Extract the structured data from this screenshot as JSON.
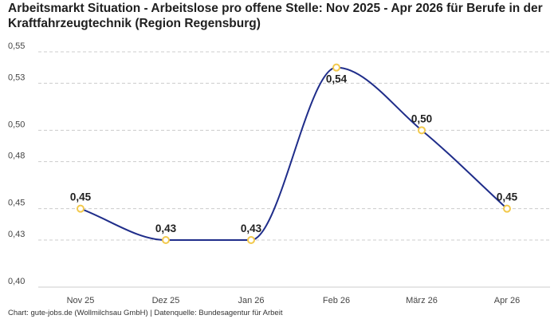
{
  "chart_data": {
    "type": "line",
    "title": "Arbeitsmarkt Situation - Arbeitslose pro offene Stelle: Nov 2025 - Apr 2026 für Berufe in der Kraftfahrzeugtechnik (Region Regensburg)",
    "xlabel": "",
    "ylabel": "",
    "categories": [
      "Nov 25",
      "Dez 25",
      "Jan 26",
      "Feb 26",
      "März 26",
      "Apr 26"
    ],
    "series": [
      {
        "values": [
          0.45,
          0.43,
          0.43,
          0.54,
          0.5,
          0.45
        ],
        "labels": [
          "0,45",
          "0,43",
          "0,43",
          "0,54",
          "0,50",
          "0,45"
        ]
      }
    ],
    "ylim": [
      0.4,
      0.55
    ],
    "yticks": [
      0.4,
      0.43,
      0.45,
      0.48,
      0.5,
      0.53,
      0.55
    ],
    "ytick_labels": [
      "0,40",
      "0,43",
      "0,45",
      "0,48",
      "0,50",
      "0,53",
      "0,55"
    ],
    "grid": true,
    "colors": {
      "line": "#1f2d8a",
      "marker_stroke": "#f2c94c",
      "marker_fill": "#ffffff",
      "grid": "#cccccc"
    }
  },
  "footer": {
    "source": "Chart: gute-jobs.de (Wollmilchsau GmbH) | Datenquelle: Bundesagentur für Arbeit"
  }
}
